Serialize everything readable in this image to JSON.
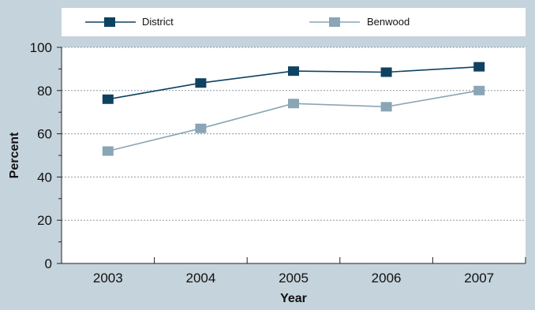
{
  "chart_data": {
    "type": "line",
    "title": "",
    "xlabel": "Year",
    "ylabel": "Percent",
    "x": [
      "2003",
      "2004",
      "2005",
      "2006",
      "2007"
    ],
    "ylim": [
      0,
      100
    ],
    "yticks": [
      0,
      20,
      40,
      60,
      80,
      100
    ],
    "grid": "horizontal dotted",
    "legend_position": "top",
    "series": [
      {
        "name": "District",
        "values": [
          76,
          83.5,
          89,
          88.5,
          91
        ],
        "color": "#0f4261",
        "marker": "square"
      },
      {
        "name": "Benwood",
        "values": [
          52,
          62.5,
          74,
          72.5,
          80
        ],
        "color": "#8aa5b5",
        "marker": "square"
      }
    ],
    "colors": {
      "background": "#c5d3dc",
      "plot_background": "#ffffff"
    }
  }
}
